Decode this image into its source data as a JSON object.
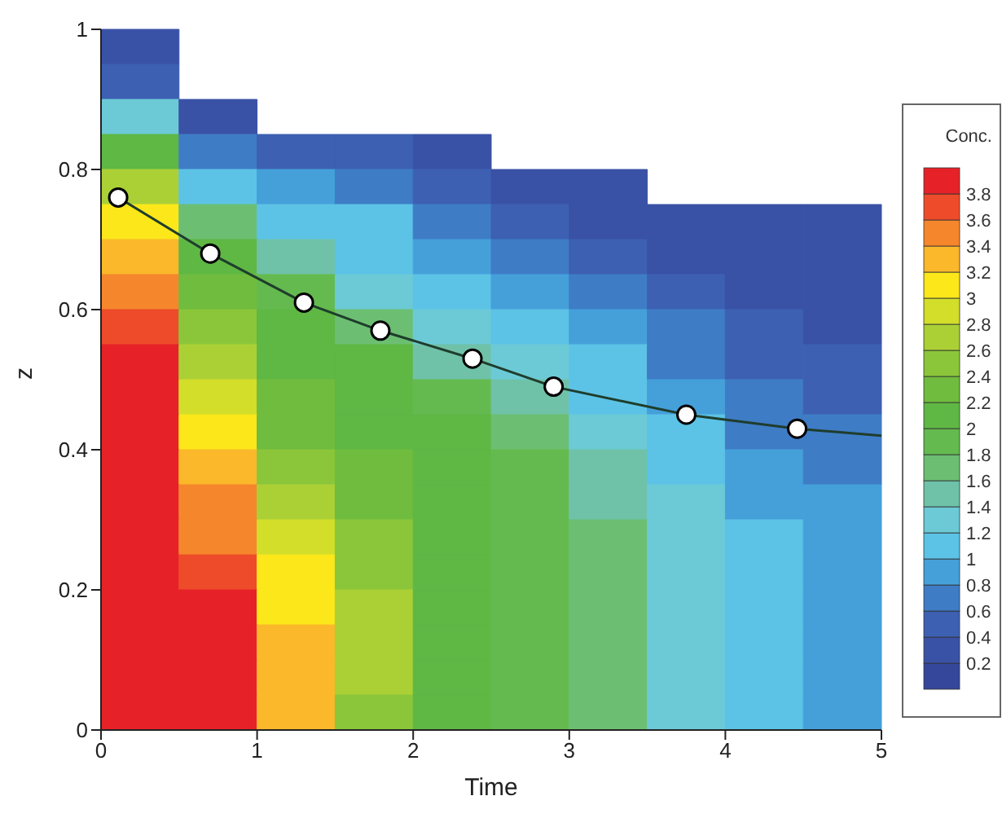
{
  "chart_data": {
    "type": "heatmap",
    "xlabel": "Time",
    "ylabel": "z",
    "clabel": "Conc.",
    "xlim": [
      0,
      5
    ],
    "xticks": [
      0,
      1,
      2,
      3,
      4,
      5
    ],
    "ylim": [
      0,
      1
    ],
    "yticks": [
      0,
      0.2,
      0.4,
      0.6,
      0.8,
      1
    ],
    "clim": [
      0,
      4
    ],
    "cticks": [
      0.2,
      0.4,
      0.6,
      0.8,
      1,
      1.2,
      1.4,
      1.6,
      1.8,
      2,
      2.2,
      2.4,
      2.6,
      2.8,
      3,
      3.2,
      3.4,
      3.6,
      3.8
    ],
    "cells": [
      [
        0.3,
        null,
        null,
        null,
        null,
        null,
        null,
        null,
        null,
        null
      ],
      [
        0.5,
        null,
        null,
        null,
        null,
        null,
        null,
        null,
        null,
        null
      ],
      [
        1.3,
        0.3,
        null,
        null,
        null,
        null,
        null,
        null,
        null,
        null
      ],
      [
        2.1,
        0.7,
        0.5,
        0.5,
        0.3,
        null,
        null,
        null,
        null,
        null
      ],
      [
        2.7,
        1.1,
        0.9,
        0.7,
        0.5,
        0.3,
        0.3,
        null,
        null,
        null
      ],
      [
        3.0,
        1.7,
        1.1,
        1.0,
        0.7,
        0.5,
        0.3,
        0.3,
        0.3,
        0.3
      ],
      [
        3.3,
        2.1,
        1.5,
        1.1,
        0.9,
        0.7,
        0.5,
        0.3,
        0.3,
        0.3
      ],
      [
        3.5,
        2.3,
        1.9,
        1.3,
        1.1,
        0.9,
        0.7,
        0.5,
        0.3,
        0.3
      ],
      [
        3.7,
        2.5,
        2.1,
        1.7,
        1.3,
        1.1,
        0.9,
        0.7,
        0.5,
        0.3
      ],
      [
        3.9,
        2.7,
        2.1,
        2.1,
        1.5,
        1.3,
        1.1,
        0.7,
        0.5,
        0.5
      ],
      [
        3.9,
        2.9,
        2.3,
        2.1,
        1.9,
        1.5,
        1.1,
        0.9,
        0.7,
        0.5
      ],
      [
        3.9,
        3.1,
        2.3,
        2.1,
        2.1,
        1.7,
        1.3,
        1.1,
        0.7,
        0.7
      ],
      [
        3.9,
        3.3,
        2.5,
        2.3,
        2.1,
        1.9,
        1.5,
        1.1,
        0.9,
        0.7
      ],
      [
        3.9,
        3.4,
        2.7,
        2.3,
        2.1,
        1.9,
        1.5,
        1.3,
        0.9,
        0.9
      ],
      [
        3.9,
        3.5,
        2.9,
        2.5,
        2.1,
        1.9,
        1.7,
        1.3,
        1.1,
        0.9
      ],
      [
        3.9,
        3.7,
        3.0,
        2.5,
        2.1,
        1.9,
        1.7,
        1.3,
        1.1,
        0.9
      ],
      [
        3.9,
        3.8,
        3.1,
        2.7,
        2.1,
        1.9,
        1.7,
        1.3,
        1.1,
        0.9
      ],
      [
        3.9,
        3.9,
        3.2,
        2.7,
        2.1,
        1.9,
        1.7,
        1.3,
        1.1,
        0.9
      ],
      [
        3.9,
        3.9,
        3.3,
        2.7,
        2.1,
        1.9,
        1.7,
        1.3,
        1.1,
        0.9
      ],
      [
        3.9,
        3.9,
        3.3,
        2.5,
        2.1,
        1.9,
        1.7,
        1.3,
        1.1,
        0.9
      ]
    ],
    "series": [
      {
        "type": "line",
        "color": "#1f3d2c",
        "marker": "none",
        "x": [
          0.11,
          0.7,
          1.3,
          1.79,
          2.38,
          2.9,
          3.75,
          4.46,
          5
        ],
        "values": [
          0.76,
          0.68,
          0.61,
          0.57,
          0.53,
          0.49,
          0.45,
          0.43,
          0.42
        ]
      },
      {
        "type": "scatter",
        "color": "#ffffff",
        "marker": "circle",
        "x": [
          0.11,
          0.7,
          1.3,
          1.79,
          2.38,
          2.9,
          3.75,
          4.46
        ],
        "values": [
          0.76,
          0.68,
          0.61,
          0.57,
          0.53,
          0.49,
          0.45,
          0.43
        ]
      }
    ]
  }
}
